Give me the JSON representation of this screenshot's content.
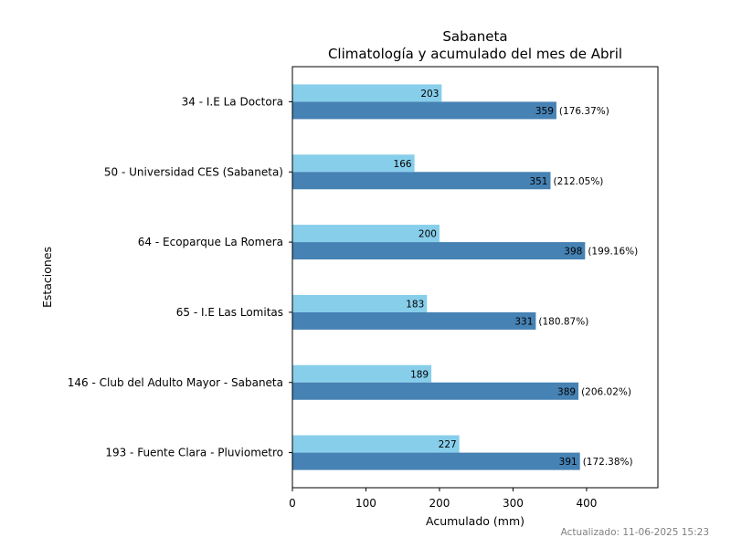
{
  "chart_data": {
    "type": "bar",
    "orientation": "horizontal",
    "title": "Sabaneta",
    "subtitle": "Climatología y acumulado del mes de Abril",
    "xlabel": "Acumulado (mm)",
    "ylabel": "Estaciones",
    "xlim": [
      0,
      497
    ],
    "xticks": [
      0,
      100,
      200,
      300,
      400
    ],
    "grid": false,
    "categories": [
      "34 - I.E La Doctora",
      "50 - Universidad CES (Sabaneta)",
      "64 - Ecoparque La Romera",
      "65 - I.E Las Lomitas",
      "146 - Club del Adulto Mayor - Sabaneta",
      "193 - Fuente Clara - Pluviometro"
    ],
    "series": [
      {
        "values": [
          203,
          166,
          200,
          183,
          189,
          227
        ],
        "color": "#87ceeb"
      },
      {
        "values": [
          359,
          351,
          398,
          331,
          389,
          391
        ],
        "color": "#4682b4",
        "percent_labels": [
          "(176.37%)",
          "(212.05%)",
          "(199.16%)",
          "(180.87%)",
          "(206.02%)",
          "(172.38%)"
        ]
      }
    ]
  },
  "footer": {
    "updated": "Actualizado: 11-06-2025 15:23"
  }
}
